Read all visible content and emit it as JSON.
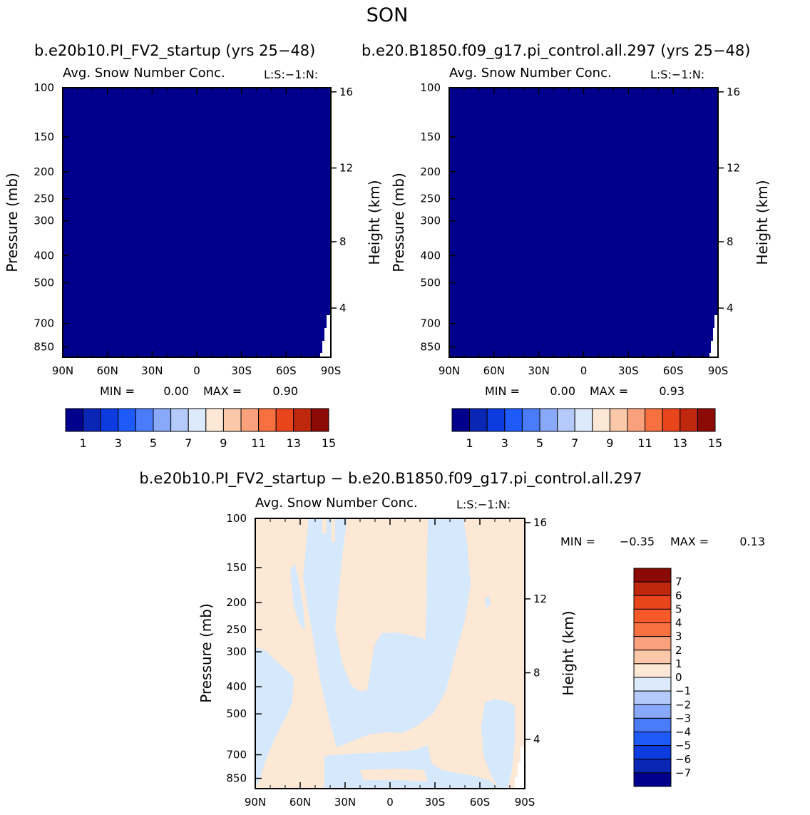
{
  "page_title": "SON",
  "top_header_left": "b.e20b10.PI_FV2_startup (yrs 25−48)",
  "top_header_right": "b.e20.B1850.f09_g17.pi_control.all.297 (yrs 25−48)",
  "bottom_header": "b.e20b10.PI_FV2_startup − b.e20.B1850.f09_g17.pi_control.all.297",
  "colors": {
    "field": "#00008c",
    "diff_pos": "#fde8d6",
    "diff_neg": "#d6e8fb",
    "frame": "#000000"
  },
  "chart_data": [
    {
      "id": "left",
      "type": "heatmap",
      "title": "Avg. Snow Number Conc.",
      "title_right": "L:S:−1:N:",
      "ylabel": "Pressure (mb)",
      "ylabel_right": "Height (km)",
      "x_ticks": [
        "90N",
        "60N",
        "30N",
        "0",
        "30S",
        "60S",
        "90S"
      ],
      "y_ticks": [
        "100",
        "150",
        "200",
        "250",
        "300",
        "400",
        "500",
        "700",
        "850"
      ],
      "height_ticks": [
        "16",
        "12",
        "8",
        "4"
      ],
      "min_label": "MIN =",
      "min_value": "0.00",
      "max_label": "MAX =",
      "max_value": "0.90",
      "min": 0.0,
      "max": 0.9,
      "colorbar": {
        "orientation": "horizontal",
        "labels": [
          "1",
          "3",
          "5",
          "7",
          "9",
          "11",
          "13",
          "15"
        ],
        "colors": [
          "#00008c",
          "#0a26b4",
          "#0c3ce0",
          "#1e5afa",
          "#4a7bfa",
          "#88a8fa",
          "#b4cafa",
          "#dceafc",
          "#fde8d6",
          "#fbc8aa",
          "#f9a07c",
          "#f7703f",
          "#e8451d",
          "#c0280e",
          "#8c0a06"
        ]
      }
    },
    {
      "id": "right",
      "type": "heatmap",
      "title": "Avg. Snow Number Conc.",
      "title_right": "L:S:−1:N:",
      "ylabel": "Pressure (mb)",
      "ylabel_right": "Height (km)",
      "x_ticks": [
        "90N",
        "60N",
        "30N",
        "0",
        "30S",
        "60S",
        "90S"
      ],
      "y_ticks": [
        "100",
        "150",
        "200",
        "250",
        "300",
        "400",
        "500",
        "700",
        "850"
      ],
      "height_ticks": [
        "16",
        "12",
        "8",
        "4"
      ],
      "min_label": "MIN =",
      "min_value": "0.00",
      "max_label": "MAX =",
      "max_value": "0.93",
      "min": 0.0,
      "max": 0.93,
      "colorbar": {
        "orientation": "horizontal",
        "labels": [
          "1",
          "3",
          "5",
          "7",
          "9",
          "11",
          "13",
          "15"
        ],
        "colors": [
          "#00008c",
          "#0a26b4",
          "#0c3ce0",
          "#1e5afa",
          "#4a7bfa",
          "#88a8fa",
          "#b4cafa",
          "#dceafc",
          "#fde8d6",
          "#fbc8aa",
          "#f9a07c",
          "#f7703f",
          "#e8451d",
          "#c0280e",
          "#8c0a06"
        ]
      }
    },
    {
      "id": "diff",
      "type": "heatmap",
      "title": "Avg. Snow Number Conc.",
      "title_right": "L:S:−1:N:",
      "ylabel": "Pressure (mb)",
      "ylabel_right": "Height (km)",
      "x_ticks": [
        "90N",
        "60N",
        "30N",
        "0",
        "30S",
        "60S",
        "90S"
      ],
      "y_ticks": [
        "100",
        "150",
        "200",
        "250",
        "300",
        "400",
        "500",
        "700",
        "850"
      ],
      "height_ticks": [
        "16",
        "12",
        "8",
        "4"
      ],
      "min_label": "MIN =",
      "min_value": "−0.35",
      "max_label": "MAX =",
      "max_value": "0.13",
      "min": -0.35,
      "max": 0.13,
      "colorbar": {
        "orientation": "vertical",
        "labels": [
          "7",
          "6",
          "5",
          "4",
          "3",
          "2",
          "1",
          "0",
          "−1",
          "−2",
          "−3",
          "−4",
          "−5",
          "−6",
          "−7"
        ],
        "colors": [
          "#8c0a06",
          "#c0280e",
          "#e8451d",
          "#fa5a28",
          "#f7703f",
          "#f9a07c",
          "#fbc8aa",
          "#fde8d6",
          "#dceafc",
          "#b4cafa",
          "#88a8fa",
          "#4a7bfa",
          "#1e5afa",
          "#0c3ce0",
          "#0a26b4",
          "#00008c"
        ]
      }
    }
  ]
}
